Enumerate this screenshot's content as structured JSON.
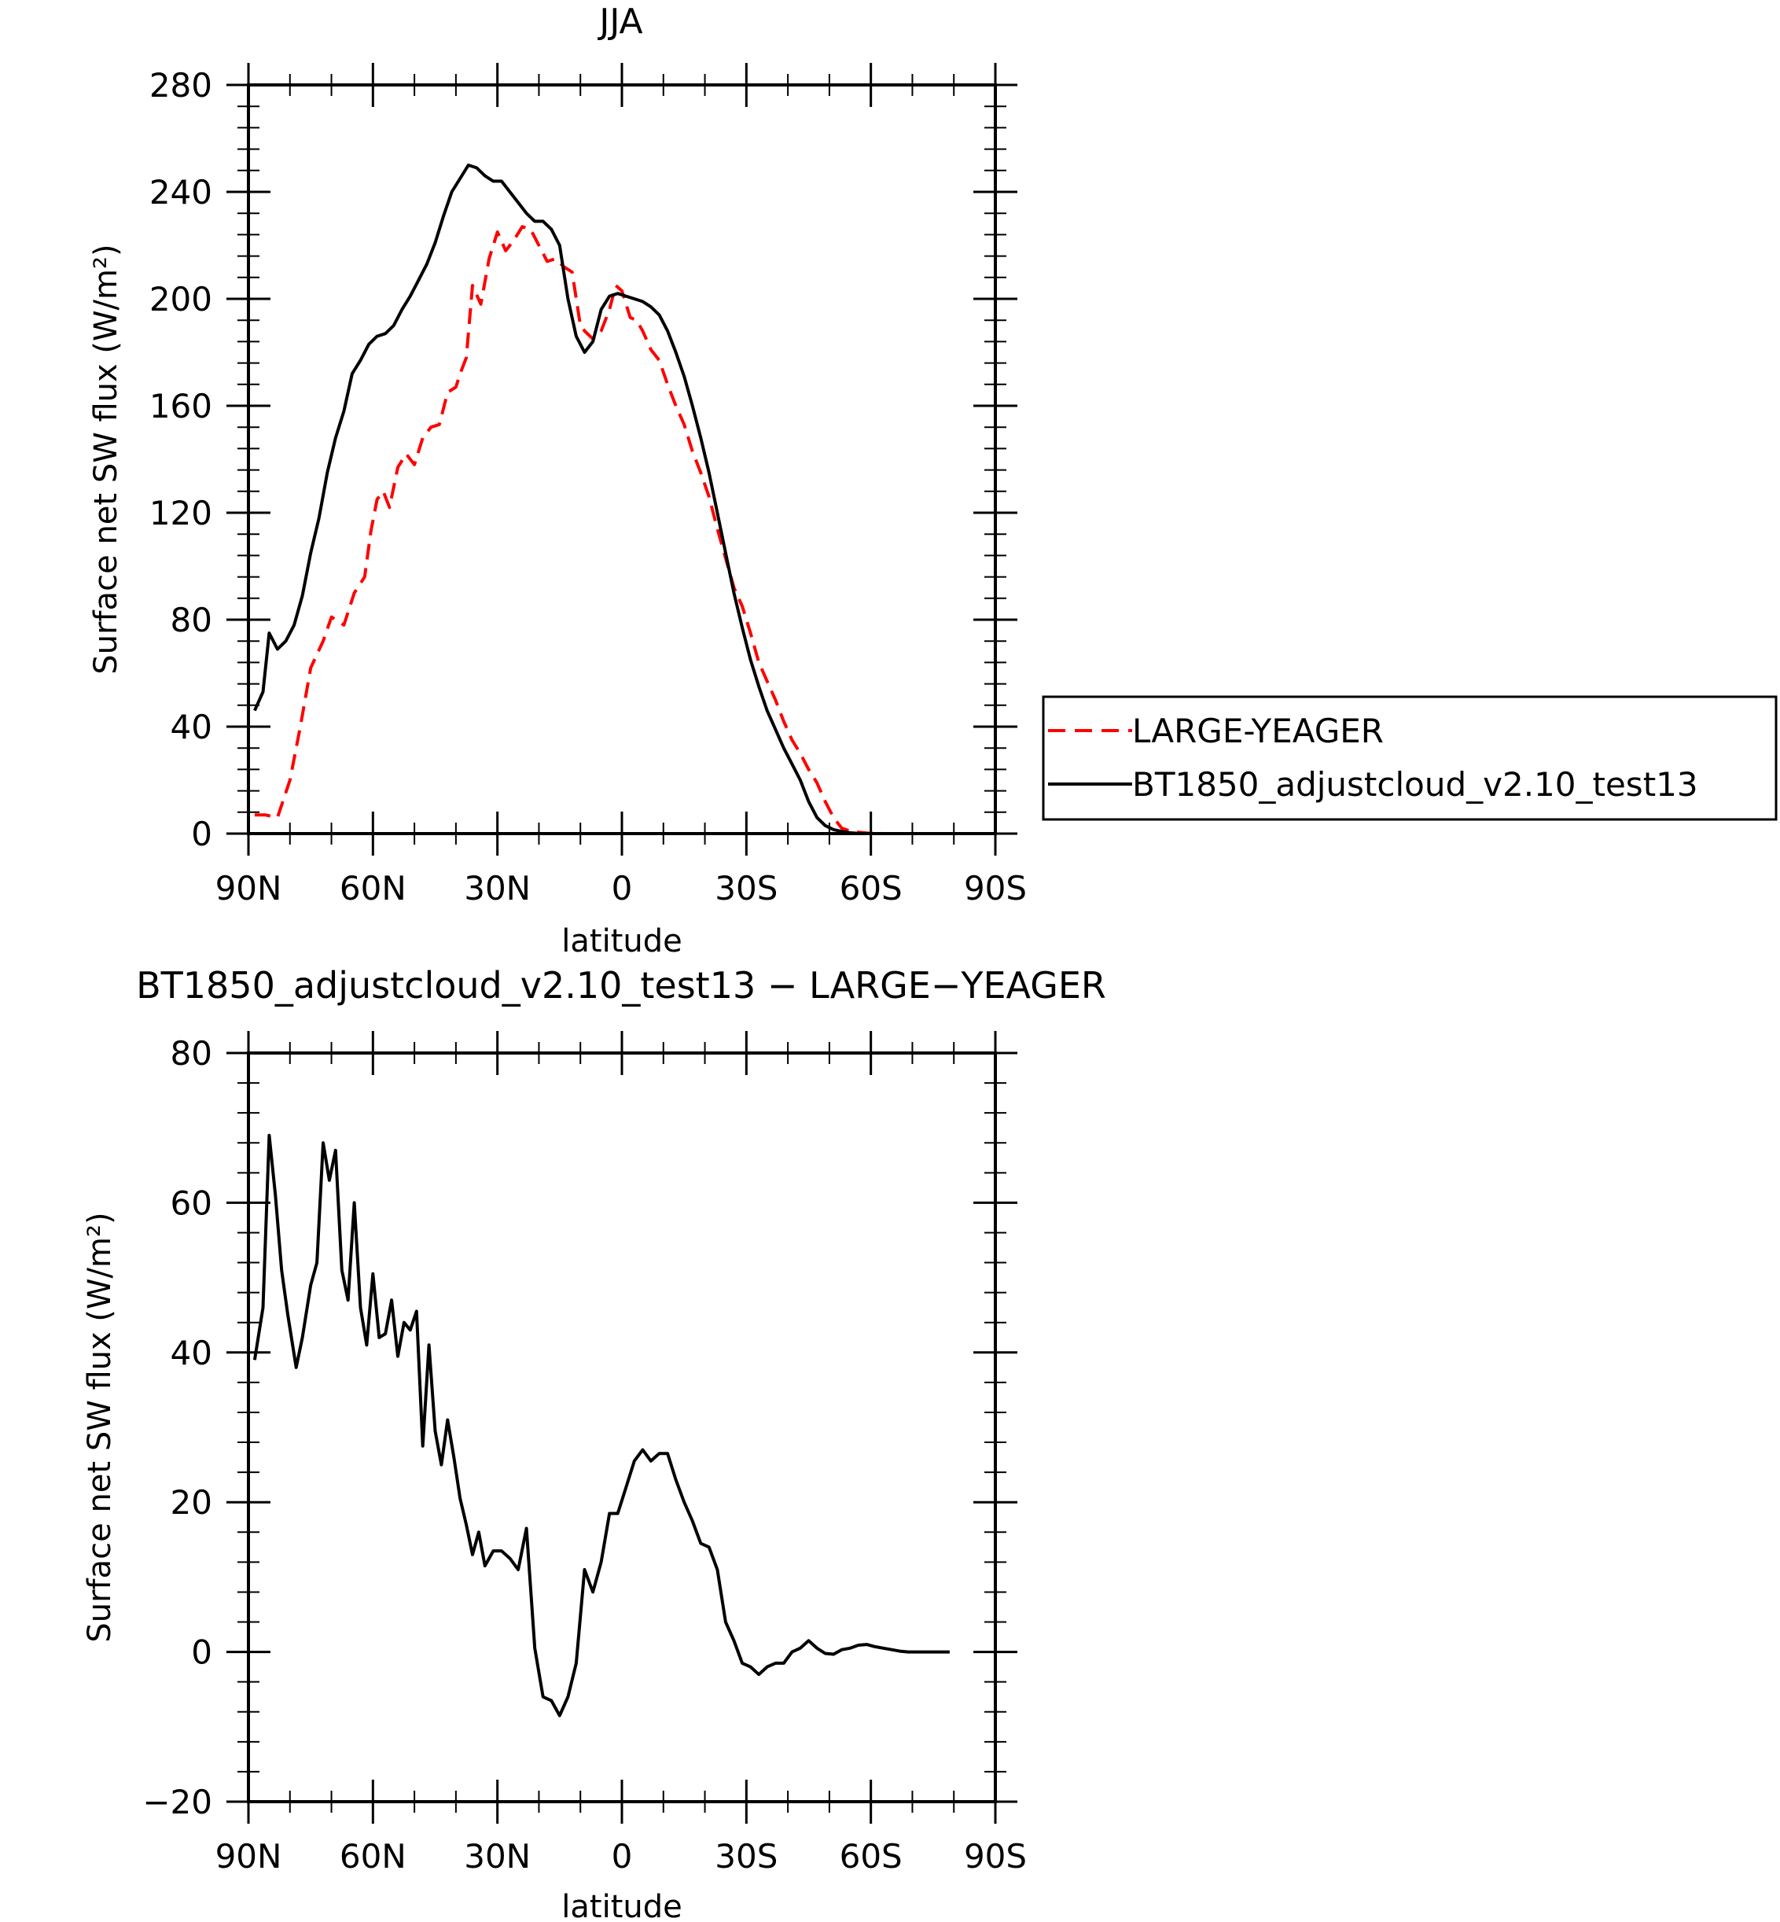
{
  "chart_data": [
    {
      "type": "line",
      "title": "JJA",
      "xlabel": "latitude",
      "ylabel": "Surface net SW flux (W/m²)",
      "xlim": [
        90,
        -90
      ],
      "ylim": [
        0,
        280
      ],
      "x_ticks": [
        90,
        60,
        30,
        0,
        -30,
        -60,
        -90
      ],
      "x_tick_labels": [
        "90N",
        "60N",
        "30N",
        "0",
        "30S",
        "60S",
        "90S"
      ],
      "y_ticks": [
        0,
        40,
        80,
        120,
        160,
        200,
        240,
        280
      ],
      "y_tick_labels": [
        "0",
        "40",
        "80",
        "120",
        "160",
        "200",
        "240",
        "280"
      ],
      "legend_position": "right",
      "series": [
        {
          "name": "LARGE-YEAGER",
          "color": "#ff0000",
          "dash": "dashed",
          "x": [
            88.5,
            86,
            83,
            80,
            77.5,
            75,
            72,
            70,
            67,
            64.5,
            62,
            60.5,
            59,
            57.5,
            56,
            54,
            52,
            50,
            48,
            46,
            44,
            42,
            40,
            39,
            37.5,
            36,
            34,
            32,
            30,
            28,
            26,
            24,
            22,
            20,
            18,
            16,
            14,
            12,
            10,
            9,
            7,
            5,
            3,
            1.5,
            0,
            -2,
            -3.5,
            -5,
            -7,
            -9,
            -11,
            -13,
            -15,
            -17,
            -19,
            -21,
            -23,
            -25,
            -27,
            -29,
            -31,
            -33,
            -35,
            -37,
            -39,
            -41,
            -43,
            -45,
            -47,
            -49,
            -51,
            -53,
            -55,
            -57,
            -59,
            -61,
            -63,
            -65,
            -67,
            -69,
            -72,
            -75,
            -78,
            -81,
            -84,
            -87
          ],
          "y": [
            7,
            7,
            6,
            20,
            40,
            62,
            72,
            81,
            78,
            90,
            96,
            113,
            125,
            128,
            122,
            137,
            142,
            138,
            148,
            152,
            153,
            165,
            167,
            172,
            178,
            205,
            198,
            215,
            225,
            218,
            222,
            227,
            226,
            220,
            214,
            215,
            212,
            210,
            190,
            188,
            185,
            188,
            196,
            205,
            203,
            193,
            192,
            188,
            181,
            177,
            168,
            160,
            153,
            143,
            135,
            126,
            114,
            103,
            92,
            85,
            75,
            64,
            57,
            50,
            42,
            35,
            30,
            24,
            19,
            12,
            6,
            2,
            1,
            0.5,
            0.2,
            0.1,
            0,
            0,
            0,
            0,
            0,
            0,
            0,
            0,
            0,
            0
          ]
        },
        {
          "name": "BT1850_adjustcloud_v2.10_test13",
          "color": "#000000",
          "dash": "solid",
          "x": [
            88.5,
            86.5,
            85,
            83,
            81,
            79,
            77,
            75,
            73,
            71,
            69,
            67,
            65,
            63,
            61,
            59,
            57,
            55,
            53,
            51,
            49,
            47,
            45,
            43,
            41,
            39,
            37,
            35,
            33,
            31,
            29,
            27,
            25,
            23,
            21,
            19,
            17,
            15,
            13,
            11,
            9,
            7,
            5,
            3,
            1,
            -1,
            -3,
            -5,
            -7,
            -9,
            -11,
            -13,
            -15,
            -17,
            -19,
            -21,
            -23,
            -25,
            -27,
            -29,
            -31,
            -33,
            -35,
            -37,
            -39,
            -41,
            -43,
            -45,
            -47,
            -49,
            -51,
            -53,
            -55,
            -57,
            -59,
            -61,
            -63,
            -65,
            -67,
            -69,
            -72,
            -75,
            -78,
            -81,
            -84,
            -87
          ],
          "y": [
            46,
            53,
            75,
            69,
            72,
            78,
            89,
            105,
            118,
            135,
            148,
            158,
            172,
            177,
            183,
            186,
            187,
            190,
            196,
            201,
            207,
            213,
            221,
            231,
            240,
            245,
            250,
            249,
            246,
            244,
            244,
            240,
            236,
            232,
            229,
            229,
            226,
            220,
            200,
            186,
            180,
            184,
            196,
            201,
            202,
            201,
            200,
            199,
            197,
            194,
            188,
            180,
            171,
            160,
            148,
            135,
            120,
            105,
            90,
            77,
            65,
            55,
            46,
            39,
            32,
            26,
            20,
            12,
            6,
            3,
            1.5,
            0.8,
            0.3,
            0.1,
            0,
            0,
            0,
            0,
            0,
            0,
            0,
            0,
            0,
            0,
            0,
            0
          ]
        }
      ]
    },
    {
      "type": "line",
      "title": "BT1850_adjustcloud_v2.10_test13 − LARGE−YEAGER",
      "xlabel": "latitude",
      "ylabel": "Surface net SW flux (W/m²)",
      "xlim": [
        90,
        -90
      ],
      "ylim": [
        -20,
        80
      ],
      "x_ticks": [
        90,
        60,
        30,
        0,
        -30,
        -60,
        -90
      ],
      "x_tick_labels": [
        "90N",
        "60N",
        "30N",
        "0",
        "30S",
        "60S",
        "90S"
      ],
      "y_ticks": [
        -20,
        0,
        20,
        40,
        60,
        80
      ],
      "y_tick_labels": [
        "−20",
        "0",
        "20",
        "40",
        "60",
        "80"
      ],
      "series": [
        {
          "color": "#000000",
          "dash": "solid",
          "x": [
            88.5,
            86.5,
            85,
            83.5,
            82,
            80.5,
            78.5,
            77,
            75,
            73.5,
            72,
            70.5,
            69,
            67.5,
            66,
            64.5,
            63,
            61.5,
            60,
            58.5,
            57,
            55.5,
            54,
            52.5,
            51,
            49.5,
            48,
            46.5,
            45,
            43.5,
            42,
            40.5,
            39,
            37.5,
            36,
            34.5,
            33,
            31,
            29,
            27,
            25,
            23,
            21,
            19,
            17,
            15,
            13,
            11,
            9,
            7,
            5,
            3,
            1,
            -1,
            -3,
            -5,
            -7,
            -9,
            -11,
            -13,
            -15,
            -17,
            -19,
            -21,
            -23,
            -25,
            -27,
            -29,
            -31,
            -33,
            -35,
            -37,
            -39,
            -41,
            -43,
            -45,
            -47,
            -49,
            -51,
            -53,
            -55,
            -57,
            -59,
            -61,
            -63,
            -65,
            -67,
            -69,
            -71,
            -73,
            -75,
            -77,
            -79
          ],
          "y": [
            39,
            46,
            69,
            61,
            51,
            45,
            38,
            42,
            49,
            52,
            68,
            63,
            67,
            51,
            47,
            60,
            46,
            41,
            50.5,
            42,
            42.5,
            47,
            39.5,
            44,
            43,
            45.5,
            27.5,
            41,
            29.5,
            25,
            31,
            26,
            20.5,
            17,
            13,
            16,
            11.5,
            13.5,
            13.5,
            12.5,
            11,
            16.5,
            0.5,
            -6,
            -6.5,
            -8.5,
            -6,
            -1.5,
            11,
            8,
            12,
            18.5,
            18.5,
            22,
            25.5,
            27,
            25.5,
            26.5,
            26.5,
            23,
            20,
            17.5,
            14.5,
            14,
            11,
            4,
            1.5,
            -1.5,
            -2,
            -3,
            -2,
            -1.5,
            -1.5,
            0,
            0.5,
            1.5,
            0.5,
            -0.2,
            -0.3,
            0.3,
            0.5,
            0.9,
            1,
            0.7,
            0.5,
            0.3,
            0.1,
            0,
            0,
            0,
            0,
            0,
            0
          ]
        }
      ]
    }
  ]
}
